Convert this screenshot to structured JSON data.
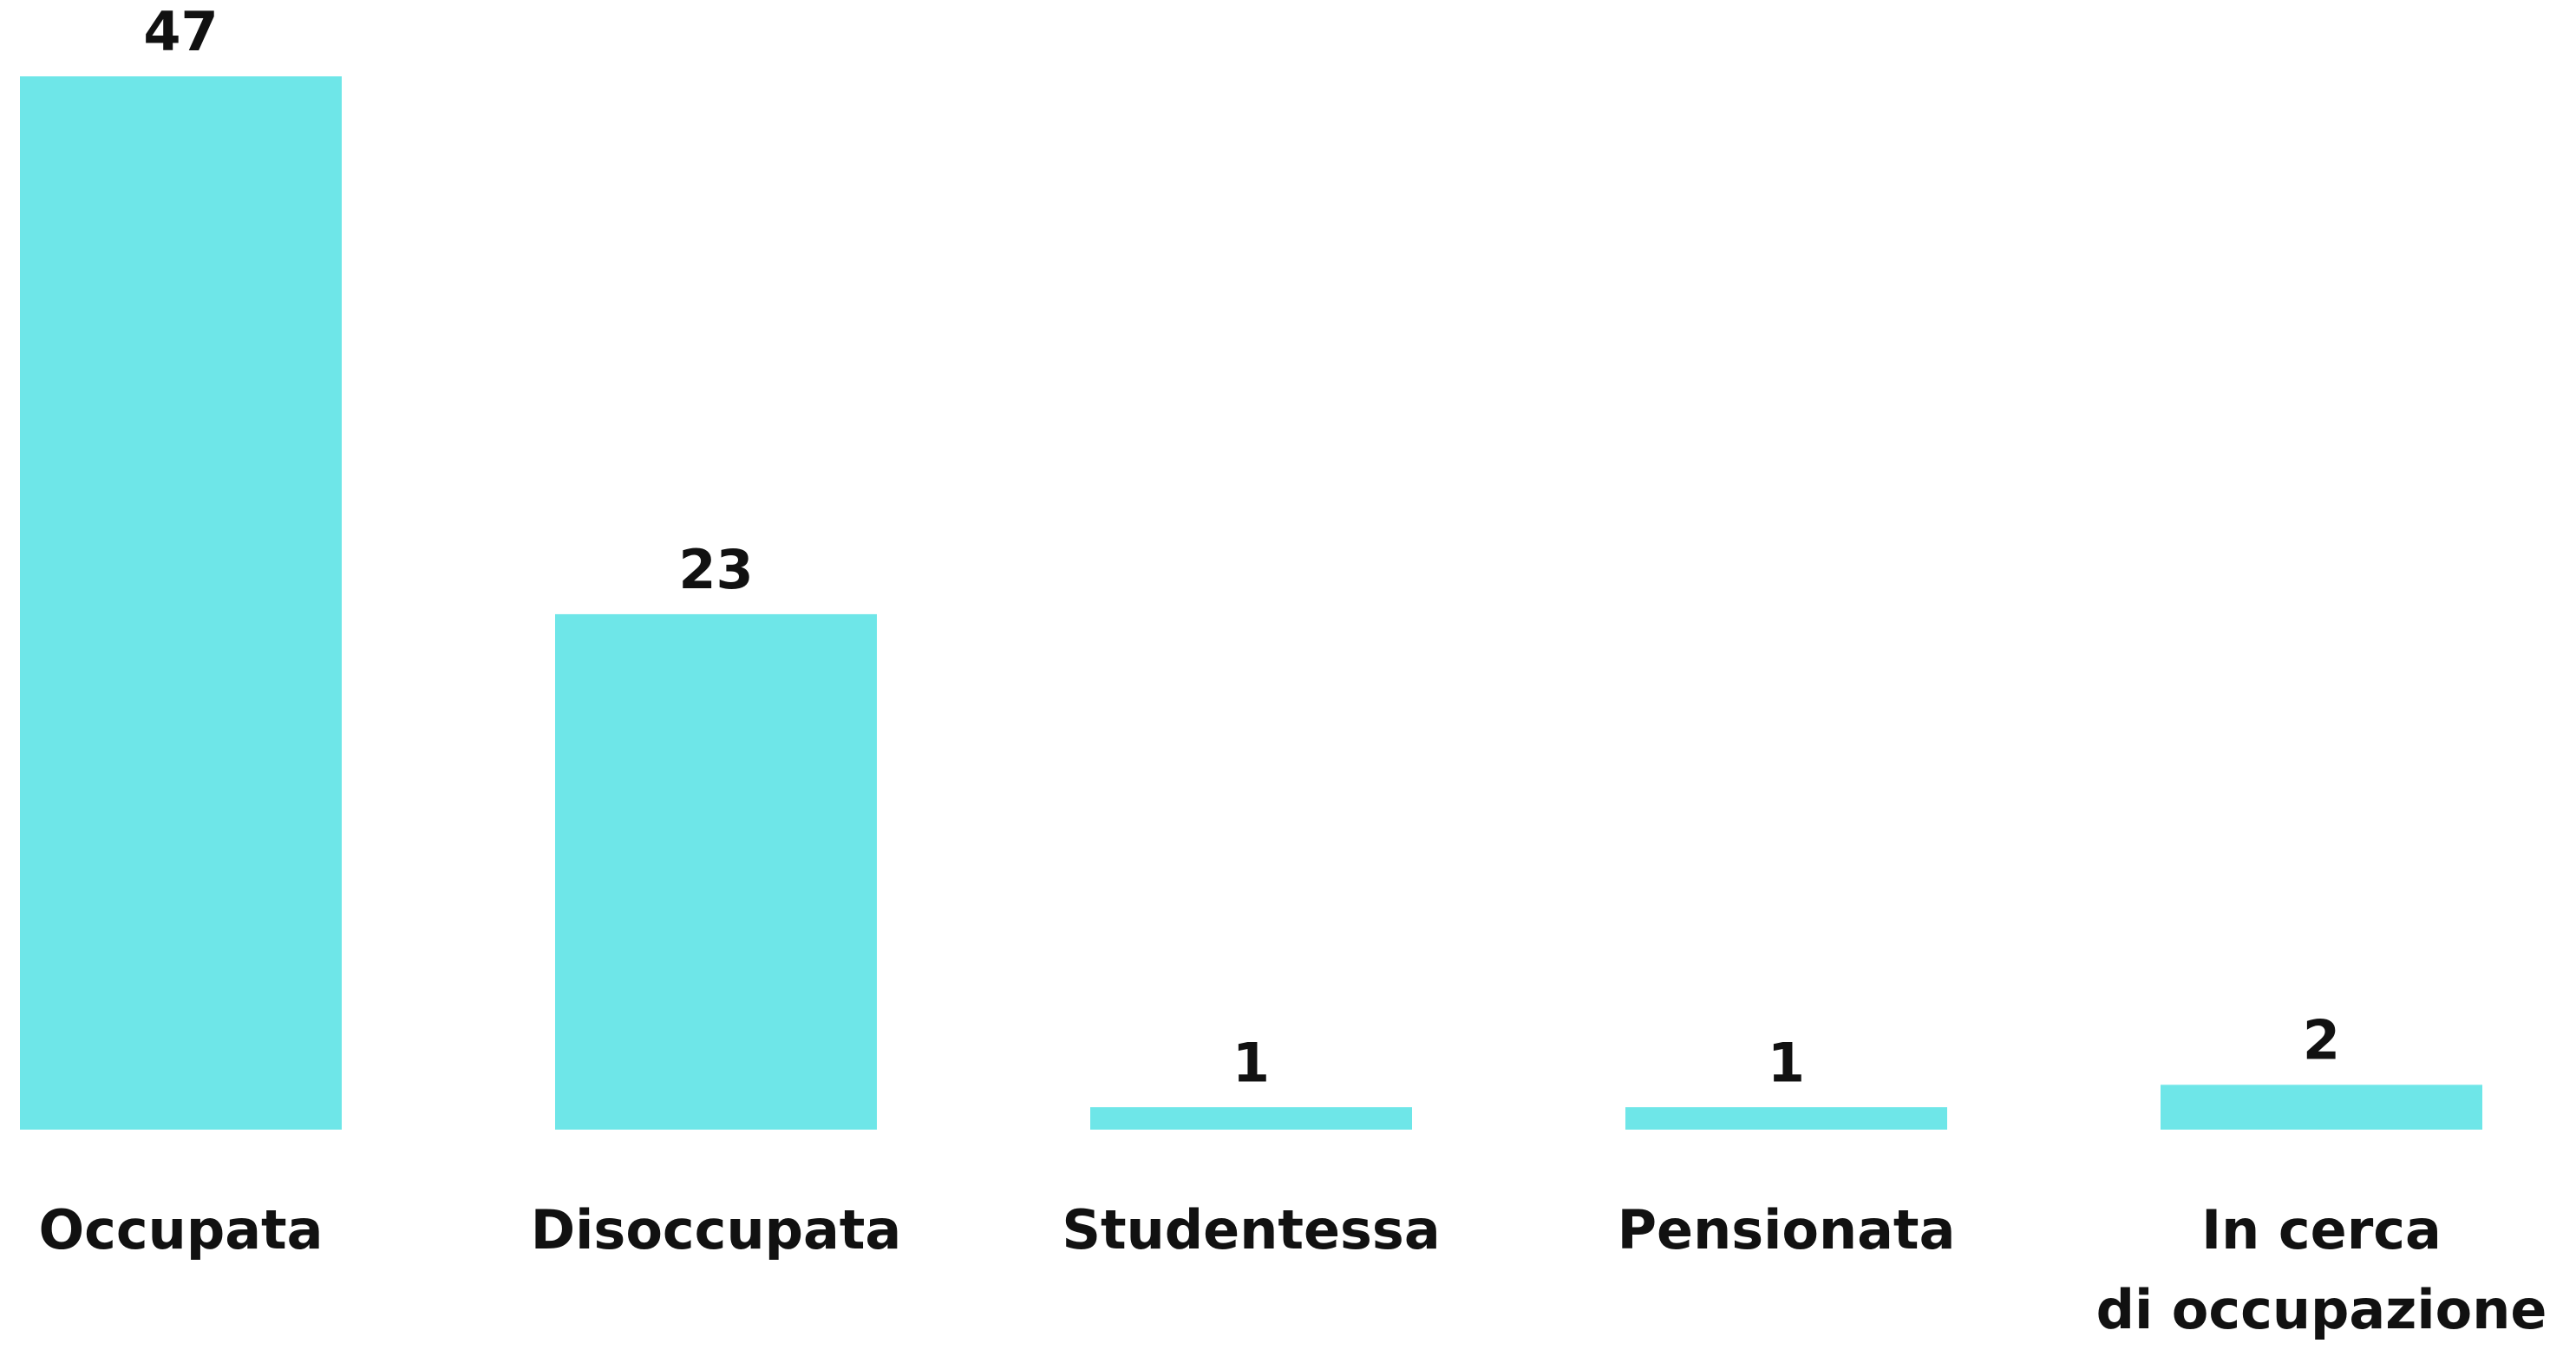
{
  "chart_data": {
    "type": "bar",
    "categories": [
      "Occupata",
      "Disoccupata",
      "Studentessa",
      "Pensionata",
      "In cerca\ndi occupazione"
    ],
    "values": [
      47,
      23,
      1,
      1,
      2
    ],
    "color": "#6ee6e8"
  }
}
